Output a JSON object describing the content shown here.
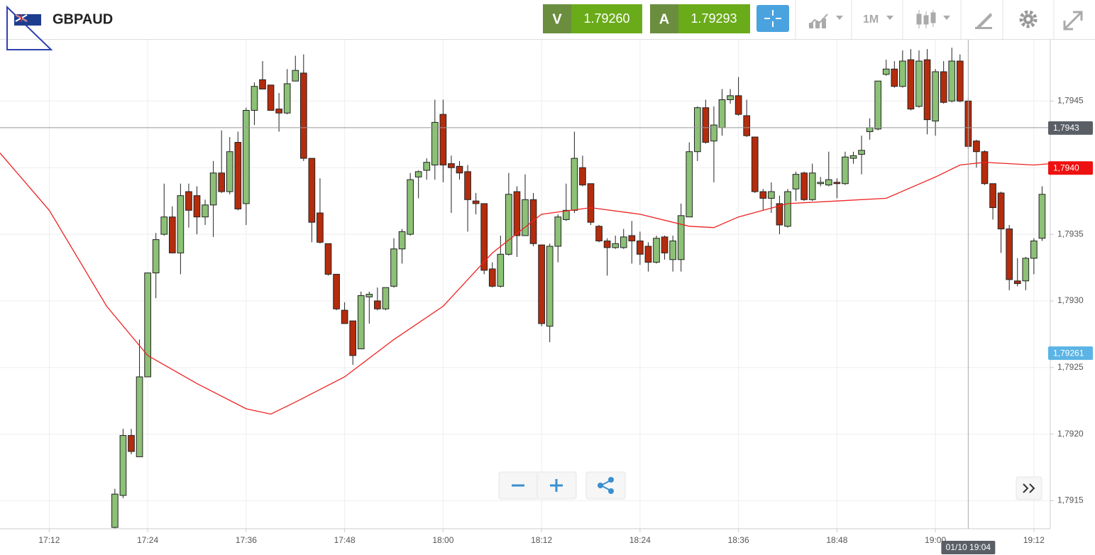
{
  "header": {
    "symbol": "GBPAUD",
    "bid_label": "V",
    "bid": "1.79260",
    "ask_label": "A",
    "ask": "1.79293",
    "timeframe": "1M"
  },
  "chart_data": {
    "type": "candlestick",
    "x": [
      "17:20",
      "17:21",
      "17:22",
      "17:23",
      "17:24",
      "17:25",
      "17:26",
      "17:27",
      "17:28",
      "17:29",
      "17:30",
      "17:31",
      "17:32",
      "17:33",
      "17:34",
      "17:35",
      "17:36",
      "17:37",
      "17:38",
      "17:39",
      "17:40",
      "17:41",
      "17:42",
      "17:43",
      "17:44",
      "17:45",
      "17:46",
      "17:47",
      "17:48",
      "17:49",
      "17:50",
      "17:51",
      "17:52",
      "17:53",
      "17:54",
      "17:55",
      "17:56",
      "17:57",
      "17:58",
      "17:59",
      "18:00",
      "18:01",
      "18:02",
      "18:03",
      "18:04",
      "18:05",
      "18:06",
      "18:07",
      "18:08",
      "18:09",
      "18:10",
      "18:11",
      "18:12",
      "18:13",
      "18:14",
      "18:15",
      "18:16",
      "18:17",
      "18:18",
      "18:19",
      "18:20",
      "18:21",
      "18:22",
      "18:23",
      "18:24",
      "18:25",
      "18:26",
      "18:27",
      "18:28",
      "18:29",
      "18:30",
      "18:31",
      "18:32",
      "18:33",
      "18:34",
      "18:35",
      "18:36",
      "18:37",
      "18:38",
      "18:39",
      "18:40",
      "18:41",
      "18:42",
      "18:43",
      "18:44",
      "18:45",
      "18:46",
      "18:47",
      "18:48",
      "18:49",
      "18:50",
      "18:51",
      "18:52",
      "18:53",
      "18:54",
      "18:55",
      "18:56",
      "18:57",
      "18:58",
      "18:59",
      "19:00",
      "19:01",
      "19:02",
      "19:03",
      "19:04",
      "19:05",
      "19:06",
      "19:07",
      "19:08",
      "19:09",
      "19:10",
      "19:11",
      "19:12",
      "19:13"
    ],
    "open": [
      1.7913,
      1.79154,
      1.79199,
      1.79183,
      1.79243,
      1.79321,
      1.7935,
      1.79363,
      1.79336,
      1.79382,
      1.79379,
      1.79363,
      1.79372,
      1.79396,
      1.79382,
      1.79419,
      1.79373,
      1.79443,
      1.79466,
      1.79462,
      1.79444,
      1.79441,
      1.79465,
      1.79471,
      1.79407,
      1.79366,
      1.79343,
      1.7932,
      1.79293,
      1.79285,
      1.79264,
      1.79303,
      1.793,
      1.79294,
      1.79311,
      1.79339,
      1.7935,
      1.79393,
      1.79398,
      1.79402,
      1.7944,
      1.79403,
      1.79401,
      1.79397,
      1.79375,
      1.79373,
      1.79324,
      1.79311,
      1.79335,
      1.79382,
      1.79349,
      1.79376,
      1.79342,
      1.79281,
      1.79341,
      1.79361,
      1.79368,
      1.794,
      1.79388,
      1.79356,
      1.79345,
      1.7934,
      1.7934,
      1.79349,
      1.79345,
      1.79341,
      1.79329,
      1.79348,
      1.79331,
      1.79331,
      1.79363,
      1.79412,
      1.79445,
      1.7942,
      1.7943,
      1.79451,
      1.79454,
      1.79439,
      1.79423,
      1.79382,
      1.79377,
      1.79373,
      1.79356,
      1.79384,
      1.79396,
      1.79376,
      1.79388,
      1.79387,
      1.79389,
      1.79388,
      1.79407,
      1.7941,
      1.79427,
      1.79429,
      1.7947,
      1.79474,
      1.79461,
      1.79481,
      1.79446,
      1.79481,
      1.79435,
      1.79472,
      1.7945,
      1.7948,
      1.7945,
      1.7942,
      1.79412,
      1.79388,
      1.79381,
      1.79354,
      1.79315,
      1.79315,
      1.79332,
      1.79347
    ],
    "high": [
      1.79159,
      1.79204,
      1.79204,
      1.79271,
      1.79321,
      1.79351,
      1.79388,
      1.79371,
      1.79388,
      1.79388,
      1.79386,
      1.79376,
      1.79405,
      1.79428,
      1.79423,
      1.79427,
      1.79445,
      1.79464,
      1.7948,
      1.79462,
      1.79456,
      1.79474,
      1.79484,
      1.79485,
      1.79407,
      1.79392,
      1.79343,
      1.7932,
      1.79299,
      1.79285,
      1.79307,
      1.79307,
      1.7931,
      1.7931,
      1.79347,
      1.79354,
      1.79396,
      1.79398,
      1.79407,
      1.79451,
      1.79451,
      1.79409,
      1.79405,
      1.79402,
      1.79381,
      1.79373,
      1.79329,
      1.79349,
      1.79396,
      1.79386,
      1.79395,
      1.79381,
      1.79342,
      1.79343,
      1.79365,
      1.79388,
      1.79427,
      1.79409,
      1.79388,
      1.79357,
      1.79347,
      1.79349,
      1.79354,
      1.7936,
      1.79352,
      1.79344,
      1.79349,
      1.79349,
      1.79349,
      1.79373,
      1.79419,
      1.79446,
      1.79451,
      1.79446,
      1.79459,
      1.79459,
      1.79468,
      1.79451,
      1.79423,
      1.79384,
      1.79389,
      1.79379,
      1.79384,
      1.79397,
      1.79397,
      1.79403,
      1.79393,
      1.79412,
      1.79392,
      1.79412,
      1.79412,
      1.79424,
      1.79437,
      1.79465,
      1.79481,
      1.7948,
      1.79488,
      1.79489,
      1.79488,
      1.79489,
      1.79474,
      1.7948,
      1.7949,
      1.79485,
      1.79452,
      1.79421,
      1.79413,
      1.79388,
      1.79382,
      1.79357,
      1.79332,
      1.79333,
      1.79347,
      1.79386
    ],
    "low": [
      1.7912,
      1.79152,
      1.79185,
      1.79183,
      1.79243,
      1.79302,
      1.79349,
      1.79336,
      1.7932,
      1.79355,
      1.7935,
      1.79357,
      1.79348,
      1.79381,
      1.7938,
      1.79368,
      1.79357,
      1.79432,
      1.79459,
      1.79443,
      1.79427,
      1.7944,
      1.79465,
      1.79405,
      1.79344,
      1.79343,
      1.79319,
      1.79293,
      1.79283,
      1.79252,
      1.79264,
      1.79283,
      1.79293,
      1.79293,
      1.7931,
      1.79328,
      1.79349,
      1.79377,
      1.79391,
      1.79391,
      1.79389,
      1.79366,
      1.79391,
      1.79352,
      1.79365,
      1.7932,
      1.7931,
      1.7931,
      1.79334,
      1.79333,
      1.79349,
      1.79341,
      1.79281,
      1.79269,
      1.79329,
      1.7936,
      1.79366,
      1.79386,
      1.79357,
      1.79344,
      1.79319,
      1.79339,
      1.79339,
      1.79328,
      1.79327,
      1.79322,
      1.79328,
      1.79331,
      1.79322,
      1.79322,
      1.79363,
      1.79405,
      1.79418,
      1.79389,
      1.79424,
      1.79448,
      1.79439,
      1.79423,
      1.79381,
      1.79368,
      1.79366,
      1.7935,
      1.79355,
      1.79375,
      1.79375,
      1.79375,
      1.79386,
      1.79386,
      1.79377,
      1.79387,
      1.79403,
      1.79395,
      1.79421,
      1.79428,
      1.79469,
      1.7946,
      1.7946,
      1.79443,
      1.79445,
      1.79425,
      1.79424,
      1.79448,
      1.79449,
      1.79449,
      1.79414,
      1.794,
      1.79387,
      1.79361,
      1.79336,
      1.79308,
      1.79311,
      1.79308,
      1.7932,
      1.79345
    ],
    "close": [
      1.79155,
      1.79199,
      1.79187,
      1.79243,
      1.79321,
      1.79346,
      1.79363,
      1.79336,
      1.79379,
      1.79368,
      1.79363,
      1.79372,
      1.79396,
      1.79382,
      1.79412,
      1.79369,
      1.79443,
      1.79461,
      1.79459,
      1.79443,
      1.79441,
      1.79463,
      1.79473,
      1.79407,
      1.79359,
      1.79344,
      1.7932,
      1.79294,
      1.79283,
      1.79259,
      1.79304,
      1.79305,
      1.79294,
      1.7931,
      1.79339,
      1.79352,
      1.79391,
      1.79397,
      1.79404,
      1.79434,
      1.79402,
      1.794,
      1.79396,
      1.79376,
      1.79373,
      1.79323,
      1.79311,
      1.79335,
      1.7938,
      1.79349,
      1.79376,
      1.79343,
      1.79283,
      1.79341,
      1.79363,
      1.79368,
      1.79407,
      1.79387,
      1.79359,
      1.79345,
      1.7934,
      1.79343,
      1.79348,
      1.79345,
      1.79335,
      1.79329,
      1.79347,
      1.79336,
      1.79345,
      1.79364,
      1.79412,
      1.79445,
      1.79419,
      1.79432,
      1.79451,
      1.79454,
      1.7944,
      1.79424,
      1.79382,
      1.79377,
      1.79382,
      1.79357,
      1.79382,
      1.79395,
      1.79376,
      1.79396,
      1.79389,
      1.79391,
      1.79388,
      1.79408,
      1.79409,
      1.79413,
      1.7943,
      1.79465,
      1.79474,
      1.79461,
      1.7948,
      1.79444,
      1.7948,
      1.79436,
      1.79472,
      1.79449,
      1.7948,
      1.7945,
      1.79416,
      1.79412,
      1.79388,
      1.7937,
      1.79354,
      1.79316,
      1.79313,
      1.79332,
      1.79345,
      1.7938
    ],
    "up_color": "#8cc176",
    "down_color": "#b52c0d",
    "moving_average": {
      "color": "#ee2222",
      "x": [
        "17:06",
        "17:12",
        "17:19",
        "17:24",
        "17:30",
        "17:36",
        "17:39",
        "17:42",
        "17:48",
        "17:54",
        "18:00",
        "18:06",
        "18:12",
        "18:18",
        "18:24",
        "18:30",
        "18:33",
        "18:36",
        "18:42",
        "18:48",
        "18:54",
        "19:00",
        "19:03",
        "19:06",
        "19:12",
        "19:14"
      ],
      "values": [
        1.79411,
        1.79368,
        1.79296,
        1.79259,
        1.79238,
        1.79219,
        1.79215,
        1.79224,
        1.79243,
        1.79271,
        1.79296,
        1.79336,
        1.79365,
        1.7937,
        1.79365,
        1.79356,
        1.79355,
        1.79363,
        1.79373,
        1.79375,
        1.79377,
        1.79393,
        1.79402,
        1.79404,
        1.79402,
        1.79403
      ]
    },
    "xlim": [
      "17:06",
      "19:14"
    ],
    "xticks": [
      "17:12",
      "17:24",
      "17:36",
      "17:48",
      "18:00",
      "18:12",
      "18:24",
      "18:36",
      "18:48",
      "19:00",
      "19:12"
    ],
    "ylim": [
      1.79129,
      1.79496
    ],
    "yticks": [
      {
        "value": 1.7915,
        "label": "1,7915"
      },
      {
        "value": 1.792,
        "label": "1,7920"
      },
      {
        "value": 1.7925,
        "label": "1,7925"
      },
      {
        "value": 1.793,
        "label": "1,7930"
      },
      {
        "value": 1.7935,
        "label": "1,7935"
      },
      {
        "value": 1.794,
        "label": "1,7940"
      },
      {
        "value": 1.7945,
        "label": "1,7945"
      }
    ],
    "grid": true,
    "price_labels": [
      {
        "value": 1.7943,
        "label": "1,7943",
        "color": "#5a5f66",
        "line": true
      },
      {
        "value": 1.794,
        "label": "1,7940",
        "color": "#ee1111",
        "line": false
      },
      {
        "value": 1.79261,
        "label": "1,79261",
        "color": "#5bb4e5",
        "line": false
      }
    ],
    "crosshair": {
      "x": "19:04",
      "label": "01/10 19:04"
    }
  }
}
